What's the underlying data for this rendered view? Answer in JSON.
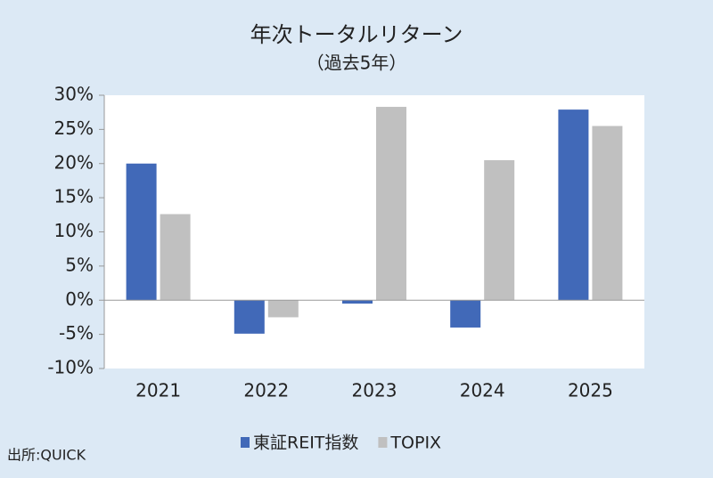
{
  "chart_data": {
    "type": "bar",
    "title": "年次トータルリターン",
    "subtitle": "（過去5年）",
    "categories": [
      "2021",
      "2022",
      "2023",
      "2024",
      "2025"
    ],
    "series": [
      {
        "name": "東証REIT指数",
        "color": "#4169b8",
        "values": [
          20.0,
          -4.9,
          -0.5,
          -4.0,
          27.9
        ]
      },
      {
        "name": "TOPIX",
        "color": "#c0c0c0",
        "values": [
          12.6,
          -2.5,
          28.3,
          20.5,
          25.5
        ]
      }
    ],
    "ylim": [
      -10,
      30
    ],
    "yticks": [
      {
        "value": -10,
        "label": "-10%"
      },
      {
        "value": -5,
        "label": "-5%"
      },
      {
        "value": 0,
        "label": "0%"
      },
      {
        "value": 5,
        "label": "5%"
      },
      {
        "value": 10,
        "label": "10%"
      },
      {
        "value": 15,
        "label": "15%"
      },
      {
        "value": 20,
        "label": "20%"
      },
      {
        "value": 25,
        "label": "25%"
      },
      {
        "value": 30,
        "label": "30%"
      }
    ],
    "legend": "bottom",
    "source": "出所:QUICK"
  }
}
